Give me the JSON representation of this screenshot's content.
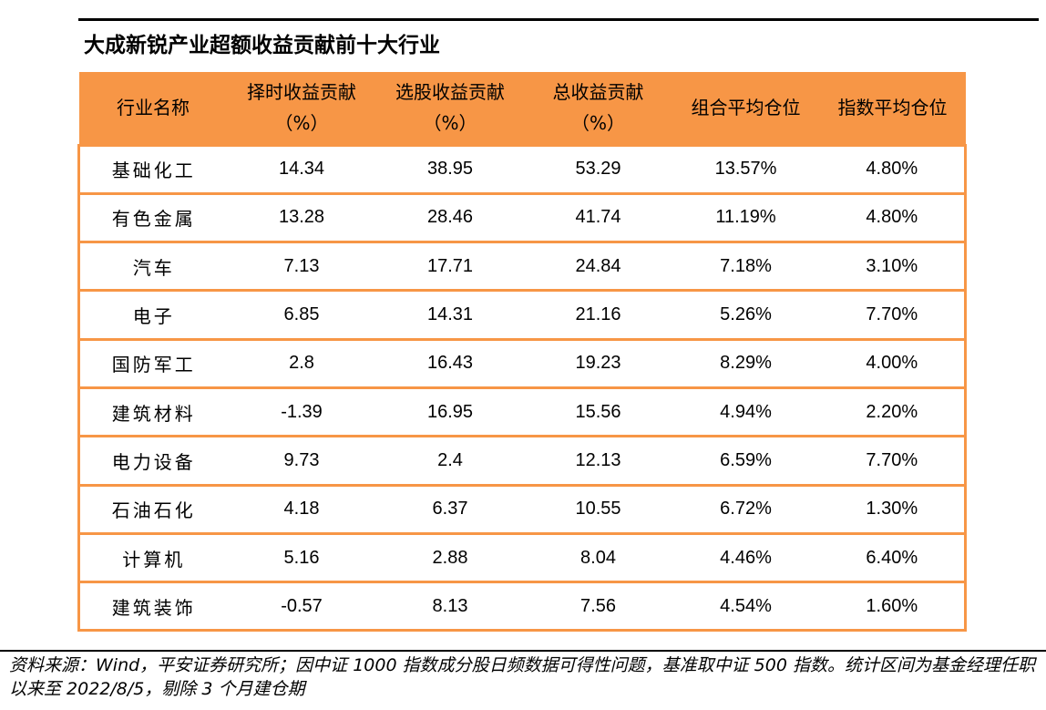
{
  "title": "大成新锐产业超额收益贡献前十大行业",
  "table": {
    "headers": [
      {
        "line1": "行业名称",
        "line2": ""
      },
      {
        "line1": "择时收益贡献",
        "line2": "（%）"
      },
      {
        "line1": "选股收益贡献",
        "line2": "（%）"
      },
      {
        "line1": "总收益贡献",
        "line2": "（%）"
      },
      {
        "line1": "组合平均仓位",
        "line2": ""
      },
      {
        "line1": "指数平均仓位",
        "line2": ""
      }
    ],
    "rows": [
      [
        "基础化工",
        "14.34",
        "38.95",
        "53.29",
        "13.57%",
        "4.80%"
      ],
      [
        "有色金属",
        "13.28",
        "28.46",
        "41.74",
        "11.19%",
        "4.80%"
      ],
      [
        "汽车",
        "7.13",
        "17.71",
        "24.84",
        "7.18%",
        "3.10%"
      ],
      [
        "电子",
        "6.85",
        "14.31",
        "21.16",
        "5.26%",
        "7.70%"
      ],
      [
        "国防军工",
        "2.8",
        "16.43",
        "19.23",
        "8.29%",
        "4.00%"
      ],
      [
        "建筑材料",
        "-1.39",
        "16.95",
        "15.56",
        "4.94%",
        "2.20%"
      ],
      [
        "电力设备",
        "9.73",
        "2.4",
        "12.13",
        "6.59%",
        "7.70%"
      ],
      [
        "石油石化",
        "4.18",
        "6.37",
        "10.55",
        "6.72%",
        "1.30%"
      ],
      [
        "计算机",
        "5.16",
        "2.88",
        "8.04",
        "4.46%",
        "6.40%"
      ],
      [
        "建筑装饰",
        "-0.57",
        "8.13",
        "7.56",
        "4.54%",
        "1.60%"
      ]
    ]
  },
  "source_note": "资料来源：Wind，平安证券研究所；因中证 1000 指数成分股日频数据可得性问题，基准取中证 500 指数。统计区间为基金经理任职以来至 2022/8/5，剔除 3 个月建仓期",
  "colors": {
    "header_fill": "#f79646",
    "grid_line": "#f79646",
    "rule": "#000000"
  }
}
